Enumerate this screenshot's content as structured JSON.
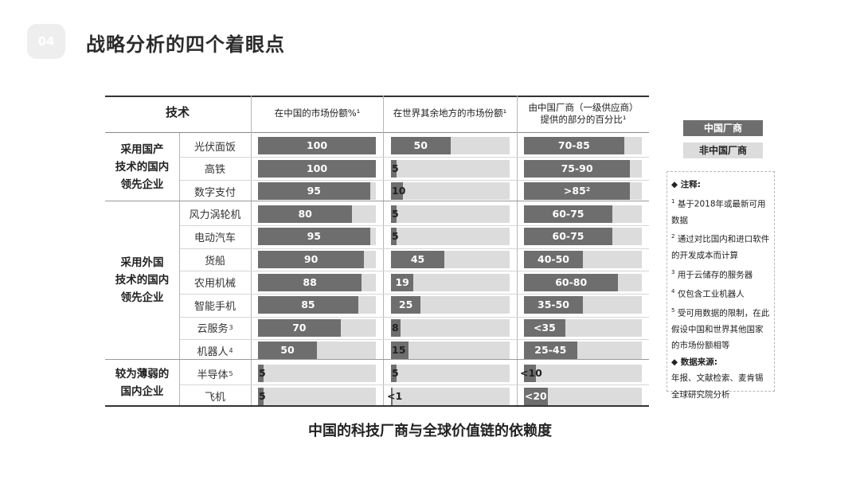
{
  "page": {
    "number": "04",
    "title": "战略分析的四个着眼点"
  },
  "table": {
    "headers": {
      "tech": "技术",
      "china_share": "在中国的市场份额%¹",
      "world_share": "在世界其余地方的市场份额¹",
      "supplier_line1": "由中国厂商（一级供应商）",
      "supplier_line2": "提供的部分的百分比¹"
    },
    "groups": [
      {
        "label_lines": [
          "采用国产",
          "技术的国内",
          "领先企业"
        ]
      },
      {
        "label_lines": [
          "采用外国",
          "技术的国内",
          "领先企业"
        ]
      },
      {
        "label_lines": [
          "较为薄弱的",
          "国内企业"
        ]
      }
    ]
  },
  "chart_data": {
    "type": "bar",
    "title": "中国的科技厂商与全球价值链的依赖度",
    "xlim": [
      0,
      100
    ],
    "categories": [
      "光伏面饭",
      "高铁",
      "数字支付",
      "风力涡轮机",
      "电动汽车",
      "货船",
      "农用机械",
      "智能手机",
      "云服务",
      "机器人",
      "半导体",
      "飞机"
    ],
    "category_notes": [
      "",
      "",
      "",
      "",
      "",
      "",
      "",
      "",
      "3",
      "4",
      "5",
      ""
    ],
    "series": [
      {
        "name": "在中国的市场份额%¹",
        "values": [
          100,
          100,
          95,
          80,
          95,
          90,
          88,
          85,
          70,
          50,
          5,
          5
        ],
        "labels": [
          "100",
          "100",
          "95",
          "80",
          "95",
          "90",
          "88",
          "85",
          "70",
          "50",
          "5",
          "5"
        ]
      },
      {
        "name": "在世界其余地方的市场份额¹",
        "values": [
          50,
          5,
          10,
          5,
          5,
          45,
          19,
          25,
          8,
          15,
          5,
          1
        ],
        "labels": [
          "50",
          "5",
          "10",
          "5",
          "5",
          "45",
          "19",
          "25",
          "8",
          "15",
          "5",
          "<1"
        ]
      },
      {
        "name": "由中国厂商（一级供应商）提供的部分的百分比¹",
        "values": [
          85,
          90,
          90,
          75,
          75,
          50,
          80,
          50,
          35,
          45,
          10,
          20
        ],
        "labels": [
          "70-85",
          "75-90",
          ">85²",
          "60-75",
          "60-75",
          "40-50",
          "60-80",
          "35-50",
          "<35",
          "25-45",
          "<10",
          "<20"
        ]
      }
    ],
    "legend": [
      {
        "label": "中国厂商",
        "color": "#6e6e6e"
      },
      {
        "label": "非中国厂商",
        "color": "#dcdcdc"
      }
    ]
  },
  "notes": {
    "head": "◆ 注释:",
    "items": [
      {
        "sup": "1",
        "text": "基于2018年或最新可用数据"
      },
      {
        "sup": "2",
        "text": "通过对比国内和进口软件的开发成本而计算"
      },
      {
        "sup": "3",
        "text": "用于云储存的服务器"
      },
      {
        "sup": "4",
        "text": "仅包含工业机器人"
      },
      {
        "sup": "5",
        "text": "受可用数据的限制，在此假设中国和世界其他国家的市场份额相等"
      }
    ],
    "source_head": "◆ 数据来源:",
    "source_text": "年报、文献检索、麦肯锡全球研究院分析"
  }
}
